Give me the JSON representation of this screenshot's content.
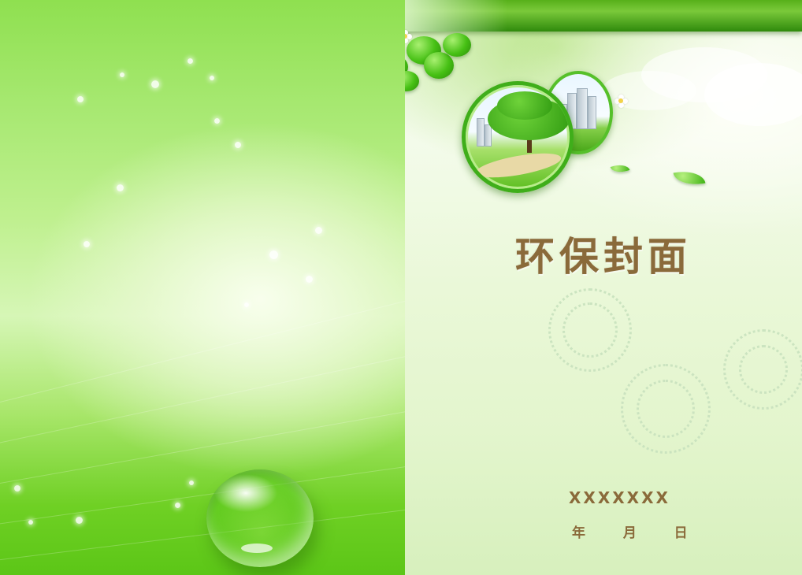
{
  "cover": {
    "title": "环保封面",
    "author_placeholder": "XXXXXXX",
    "date_line": "年  月  日"
  },
  "colors": {
    "title_text": "#8a6a3a",
    "primary_green": "#57b01a",
    "light_green": "#d6f6b6"
  },
  "decorations": {
    "icons": [
      "clover-icon",
      "flower-icon",
      "tree-photo",
      "city-photo",
      "leaf-icon",
      "water-drop"
    ]
  }
}
